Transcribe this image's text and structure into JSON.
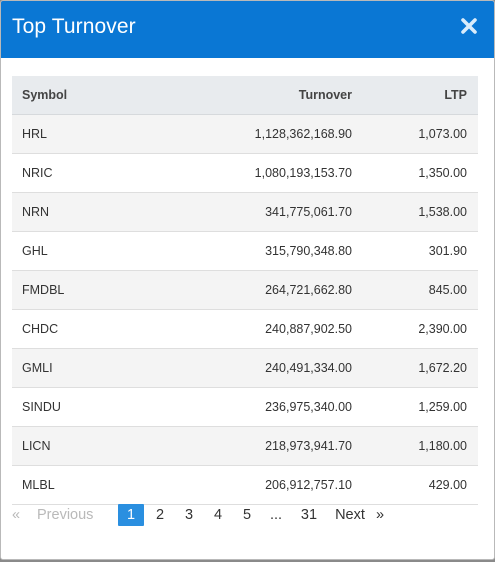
{
  "modal": {
    "title": "Top Turnover",
    "close_icon": "close-icon"
  },
  "table": {
    "columns": [
      "Symbol",
      "Turnover",
      "LTP"
    ],
    "rows": [
      {
        "symbol": "HRL",
        "turnover": "1,128,362,168.90",
        "ltp": "1,073.00"
      },
      {
        "symbol": "NRIC",
        "turnover": "1,080,193,153.70",
        "ltp": "1,350.00"
      },
      {
        "symbol": "NRN",
        "turnover": "341,775,061.70",
        "ltp": "1,538.00"
      },
      {
        "symbol": "GHL",
        "turnover": "315,790,348.80",
        "ltp": "301.90"
      },
      {
        "symbol": "FMDBL",
        "turnover": "264,721,662.80",
        "ltp": "845.00"
      },
      {
        "symbol": "CHDC",
        "turnover": "240,887,902.50",
        "ltp": "2,390.00"
      },
      {
        "symbol": "GMLI",
        "turnover": "240,491,334.00",
        "ltp": "1,672.20"
      },
      {
        "symbol": "SINDU",
        "turnover": "236,975,340.00",
        "ltp": "1,259.00"
      },
      {
        "symbol": "LICN",
        "turnover": "218,973,941.70",
        "ltp": "1,180.00"
      },
      {
        "symbol": "MLBL",
        "turnover": "206,912,757.10",
        "ltp": "429.00"
      }
    ]
  },
  "pagination": {
    "first": "«",
    "previous": "Previous",
    "pages": [
      "1",
      "2",
      "3",
      "4",
      "5"
    ],
    "ellipsis": "...",
    "last_page": "31",
    "next": "Next",
    "last": "»",
    "current": "1"
  },
  "colors": {
    "header_bg": "#0a77d4",
    "active_page": "#2a8fe0"
  }
}
